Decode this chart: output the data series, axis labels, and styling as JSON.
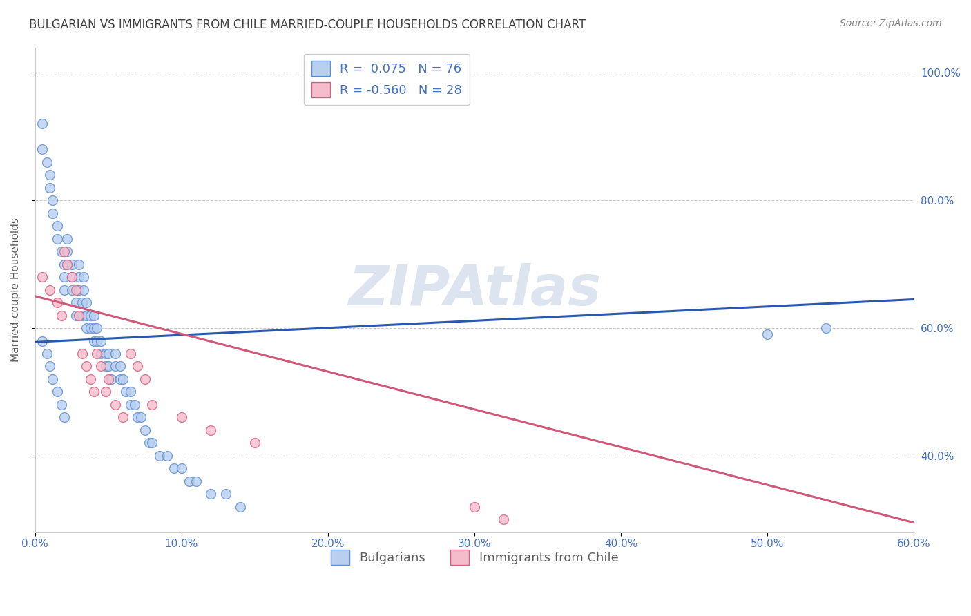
{
  "title": "BULGARIAN VS IMMIGRANTS FROM CHILE MARRIED-COUPLE HOUSEHOLDS CORRELATION CHART",
  "source": "Source: ZipAtlas.com",
  "ylabel": "Married-couple Households",
  "watermark": "ZIPAtlas",
  "legend1_line1": "R =  0.075   N = 76",
  "legend1_line2": "R = -0.560   N = 28",
  "xlim": [
    0.0,
    0.6
  ],
  "ylim": [
    0.28,
    1.04
  ],
  "yticks": [
    0.4,
    0.6,
    0.8,
    1.0
  ],
  "ytick_labels": [
    "40.0%",
    "60.0%",
    "80.0%",
    "100.0%"
  ],
  "xticks": [
    0.0,
    0.1,
    0.2,
    0.3,
    0.4,
    0.5,
    0.6
  ],
  "xtick_labels": [
    "0.0%",
    "10.0%",
    "20.0%",
    "30.0%",
    "40.0%",
    "50.0%",
    "60.0%"
  ],
  "bulgarians_x": [
    0.005,
    0.005,
    0.008,
    0.01,
    0.01,
    0.012,
    0.012,
    0.015,
    0.015,
    0.018,
    0.02,
    0.02,
    0.02,
    0.022,
    0.022,
    0.025,
    0.025,
    0.025,
    0.028,
    0.028,
    0.03,
    0.03,
    0.03,
    0.032,
    0.032,
    0.033,
    0.033,
    0.035,
    0.035,
    0.035,
    0.038,
    0.038,
    0.04,
    0.04,
    0.04,
    0.042,
    0.042,
    0.045,
    0.045,
    0.048,
    0.048,
    0.05,
    0.05,
    0.052,
    0.055,
    0.055,
    0.058,
    0.058,
    0.06,
    0.062,
    0.065,
    0.065,
    0.068,
    0.07,
    0.072,
    0.075,
    0.078,
    0.08,
    0.085,
    0.09,
    0.095,
    0.1,
    0.105,
    0.11,
    0.12,
    0.13,
    0.14,
    0.005,
    0.008,
    0.01,
    0.012,
    0.015,
    0.018,
    0.02,
    0.5,
    0.54
  ],
  "bulgarians_y": [
    0.92,
    0.88,
    0.86,
    0.84,
    0.82,
    0.8,
    0.78,
    0.76,
    0.74,
    0.72,
    0.7,
    0.68,
    0.66,
    0.74,
    0.72,
    0.7,
    0.68,
    0.66,
    0.64,
    0.62,
    0.7,
    0.68,
    0.66,
    0.64,
    0.62,
    0.68,
    0.66,
    0.64,
    0.62,
    0.6,
    0.62,
    0.6,
    0.62,
    0.6,
    0.58,
    0.6,
    0.58,
    0.58,
    0.56,
    0.56,
    0.54,
    0.56,
    0.54,
    0.52,
    0.56,
    0.54,
    0.54,
    0.52,
    0.52,
    0.5,
    0.5,
    0.48,
    0.48,
    0.46,
    0.46,
    0.44,
    0.42,
    0.42,
    0.4,
    0.4,
    0.38,
    0.38,
    0.36,
    0.36,
    0.34,
    0.34,
    0.32,
    0.58,
    0.56,
    0.54,
    0.52,
    0.5,
    0.48,
    0.46,
    0.59,
    0.6
  ],
  "chile_x": [
    0.005,
    0.01,
    0.015,
    0.018,
    0.02,
    0.022,
    0.025,
    0.028,
    0.03,
    0.032,
    0.035,
    0.038,
    0.04,
    0.042,
    0.045,
    0.048,
    0.05,
    0.055,
    0.06,
    0.065,
    0.07,
    0.075,
    0.08,
    0.1,
    0.12,
    0.15,
    0.3,
    0.32
  ],
  "chile_y": [
    0.68,
    0.66,
    0.64,
    0.62,
    0.72,
    0.7,
    0.68,
    0.66,
    0.62,
    0.56,
    0.54,
    0.52,
    0.5,
    0.56,
    0.54,
    0.5,
    0.52,
    0.48,
    0.46,
    0.56,
    0.54,
    0.52,
    0.48,
    0.46,
    0.44,
    0.42,
    0.32,
    0.3
  ],
  "blue_line_x": [
    0.0,
    0.6
  ],
  "blue_line_y": [
    0.578,
    0.645
  ],
  "pink_line_x": [
    0.0,
    0.6
  ],
  "pink_line_y": [
    0.65,
    0.295
  ],
  "scatter_size": 100,
  "blue_face": "#b8cff0",
  "blue_edge": "#6090d0",
  "pink_face": "#f5bccb",
  "pink_edge": "#d86080",
  "blue_line_color": "#2858b0",
  "pink_line_color": "#d05878",
  "background_color": "#ffffff",
  "grid_color": "#cccccc",
  "title_color": "#404040",
  "axis_label_color": "#606060",
  "tick_color": "#4472c4",
  "watermark_color": "#dce4f0",
  "title_fontsize": 12,
  "source_fontsize": 10,
  "ylabel_fontsize": 11,
  "tick_fontsize": 11,
  "legend_fontsize": 13
}
